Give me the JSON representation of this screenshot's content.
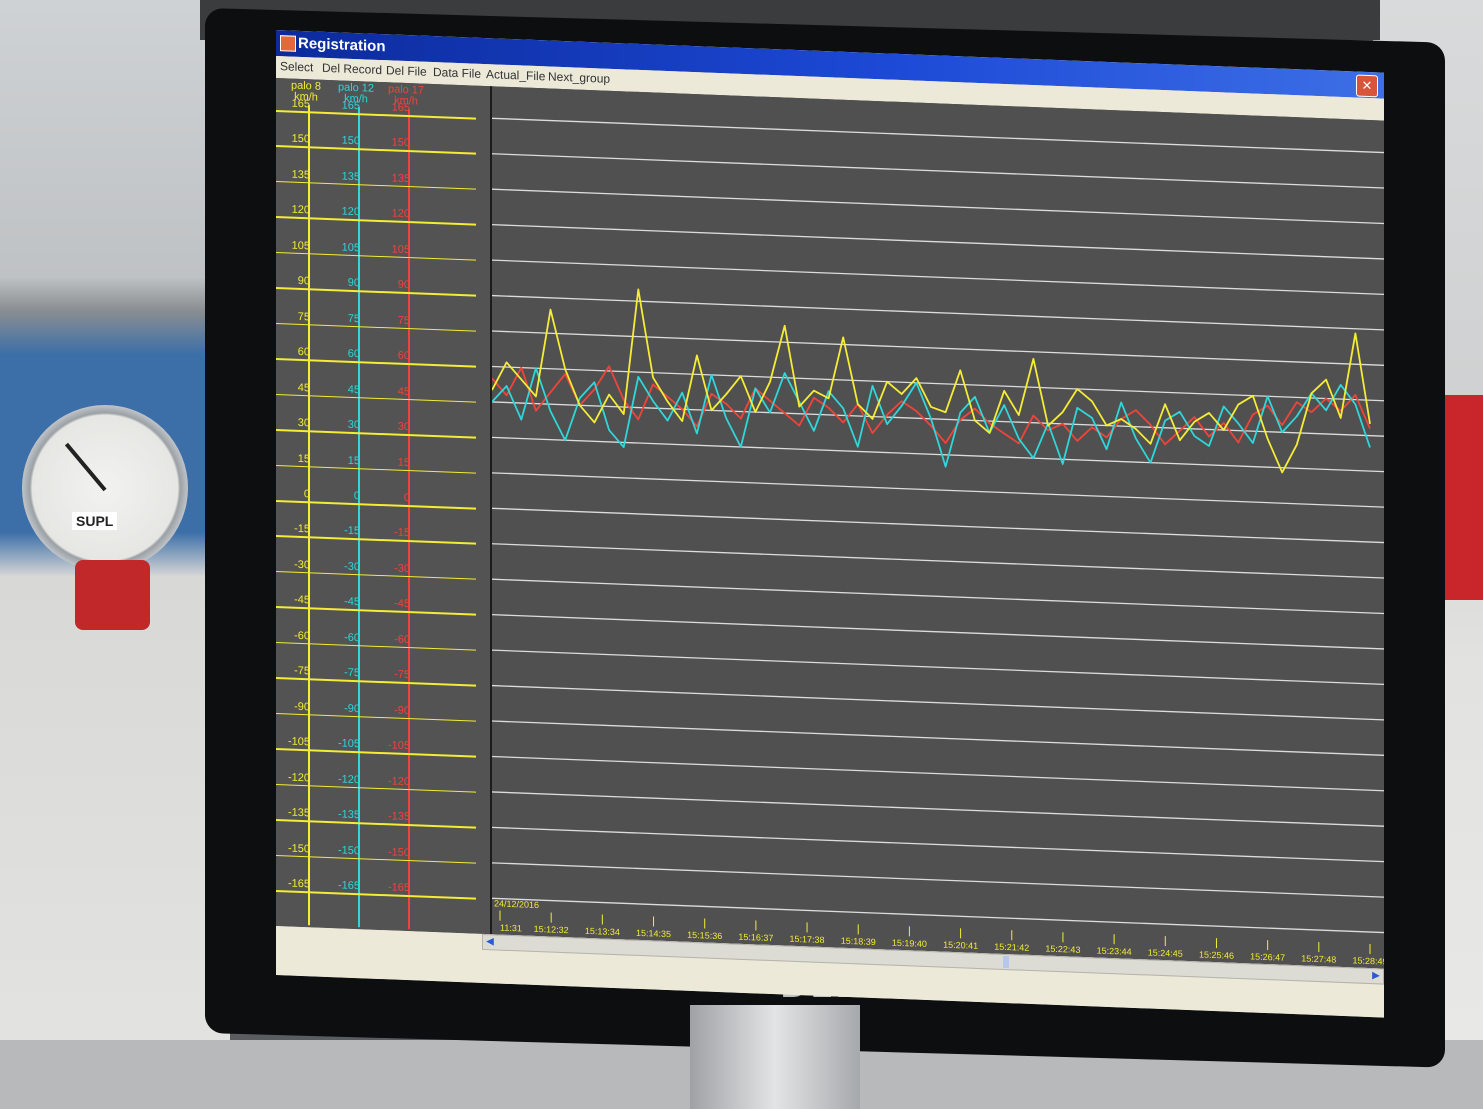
{
  "window": {
    "title": "Registration",
    "close_glyph": "✕"
  },
  "menu": [
    "Select",
    "Del Record",
    "Del File",
    "Data File",
    "Actual_File",
    "Next_group"
  ],
  "photo": {
    "gauge_label": "SUPL",
    "monitor_brand": "DELL"
  },
  "axes": [
    {
      "name": "palo 8",
      "unit": "km/h",
      "color": "#f4ec35"
    },
    {
      "name": "palo 12",
      "unit": "km/h",
      "color": "#2fd6da"
    },
    {
      "name": "palo 17",
      "unit": "km/h",
      "color": "#f0443a"
    }
  ],
  "chart_data": {
    "type": "line",
    "date": "24/12/2016",
    "ylim": [
      -165,
      165
    ],
    "y_ticks": [
      165,
      150,
      135,
      120,
      105,
      90,
      75,
      60,
      45,
      30,
      15,
      0,
      -15,
      -30,
      -45,
      -60,
      -75,
      -90,
      -105,
      -120,
      -135,
      -150,
      -165
    ],
    "x_tick_labels": [
      "11:31",
      "15:12:32",
      "15:13:34",
      "15:14:35",
      "15:15:36",
      "15:16:37",
      "15:17:38",
      "15:18:39",
      "15:19:40",
      "15:20:41",
      "15:21:42",
      "15:22:43",
      "15:23:44",
      "15:24:45",
      "15:25:46",
      "15:26:47",
      "15:27:48",
      "15:28:49"
    ],
    "grid": true,
    "series": [
      {
        "name": "palo 8",
        "color": "#f4ec35",
        "values": [
          50,
          62,
          55,
          48,
          85,
          60,
          45,
          38,
          50,
          42,
          95,
          58,
          48,
          40,
          68,
          45,
          52,
          60,
          45,
          58,
          82,
          48,
          55,
          52,
          78,
          50,
          44,
          60,
          55,
          62,
          50,
          48,
          66,
          45,
          40,
          58,
          48,
          72,
          44,
          50,
          60,
          55,
          45,
          48,
          44,
          38,
          55,
          40,
          48,
          52,
          45,
          56,
          60,
          42,
          28,
          40,
          62,
          68,
          52,
          88,
          50
        ]
      },
      {
        "name": "palo 12",
        "color": "#2fd6da",
        "values": [
          45,
          52,
          38,
          60,
          42,
          30,
          48,
          55,
          35,
          28,
          58,
          48,
          40,
          52,
          35,
          60,
          42,
          30,
          55,
          45,
          62,
          50,
          38,
          55,
          48,
          32,
          58,
          42,
          50,
          60,
          45,
          25,
          48,
          55,
          40,
          52,
          38,
          30,
          45,
          28,
          52,
          48,
          35,
          55,
          40,
          30,
          48,
          52,
          42,
          38,
          55,
          48,
          40,
          60,
          45,
          52,
          62,
          55,
          66,
          58,
          40
        ]
      },
      {
        "name": "palo 17",
        "color": "#f0443a",
        "values": [
          55,
          48,
          60,
          42,
          50,
          58,
          45,
          52,
          62,
          48,
          40,
          55,
          50,
          45,
          38,
          52,
          48,
          42,
          55,
          50,
          45,
          40,
          52,
          48,
          42,
          50,
          38,
          46,
          52,
          48,
          42,
          35,
          45,
          50,
          44,
          40,
          36,
          48,
          42,
          45,
          38,
          44,
          40,
          48,
          52,
          46,
          38,
          44,
          50,
          42,
          48,
          40,
          52,
          56,
          48,
          58,
          54,
          60,
          55,
          62,
          48
        ]
      }
    ]
  }
}
